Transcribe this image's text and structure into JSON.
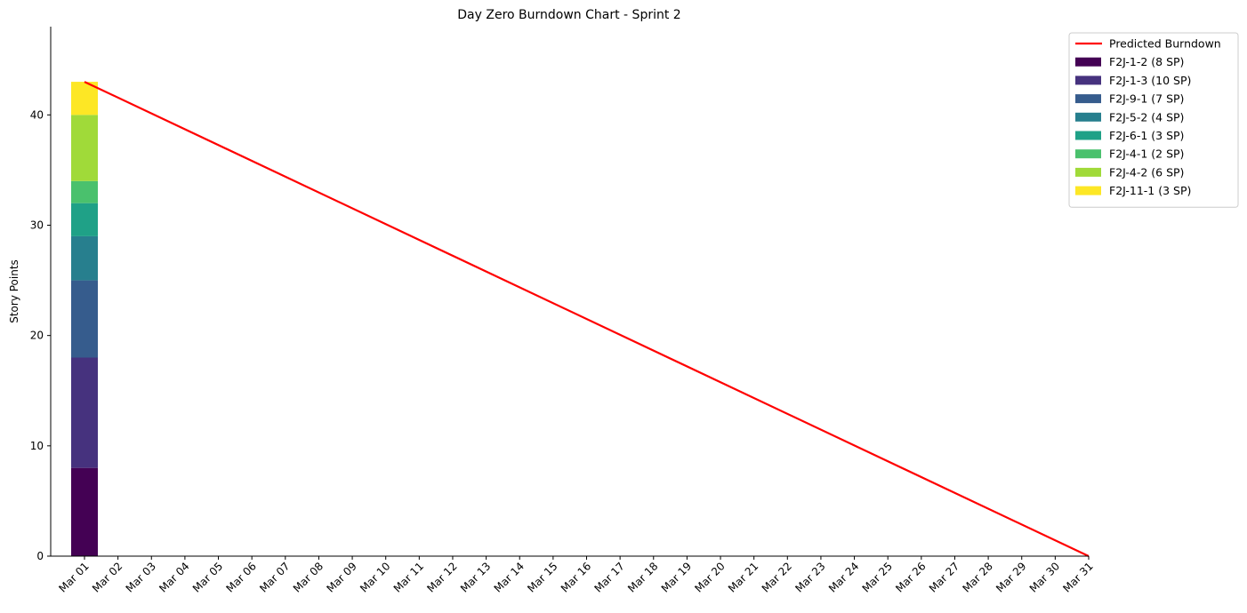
{
  "chart_data": {
    "type": "bar",
    "title": "Day Zero Burndown Chart - Sprint 2",
    "xlabel": "",
    "ylabel": "Story Points",
    "ylim": [
      0,
      48
    ],
    "y_ticks": [
      0,
      10,
      20,
      30,
      40
    ],
    "categories": [
      "Mar 01",
      "Mar 02",
      "Mar 03",
      "Mar 04",
      "Mar 05",
      "Mar 06",
      "Mar 07",
      "Mar 08",
      "Mar 09",
      "Mar 10",
      "Mar 11",
      "Mar 12",
      "Mar 13",
      "Mar 14",
      "Mar 15",
      "Mar 16",
      "Mar 17",
      "Mar 18",
      "Mar 19",
      "Mar 20",
      "Mar 21",
      "Mar 22",
      "Mar 23",
      "Mar 24",
      "Mar 25",
      "Mar 26",
      "Mar 27",
      "Mar 28",
      "Mar 29",
      "Mar 30",
      "Mar 31"
    ],
    "stacked_bar": {
      "category": "Mar 01",
      "segments": [
        {
          "name": "F2J-1-2 (8 SP)",
          "value": 8,
          "color": "#440154"
        },
        {
          "name": "F2J-1-3 (10 SP)",
          "value": 10,
          "color": "#46327e"
        },
        {
          "name": "F2J-9-1 (7 SP)",
          "value": 7,
          "color": "#365c8d"
        },
        {
          "name": "F2J-5-2 (4 SP)",
          "value": 4,
          "color": "#277f8e"
        },
        {
          "name": "F2J-6-1 (3 SP)",
          "value": 3,
          "color": "#1fa187"
        },
        {
          "name": "F2J-4-1 (2 SP)",
          "value": 2,
          "color": "#4ac16d"
        },
        {
          "name": "F2J-4-2 (6 SP)",
          "value": 6,
          "color": "#a0da39"
        },
        {
          "name": "F2J-11-1 (3 SP)",
          "value": 3,
          "color": "#fde725"
        }
      ]
    },
    "line": {
      "name": "Predicted Burndown",
      "color": "#ff0000",
      "start": {
        "x": "Mar 01",
        "y": 43
      },
      "end": {
        "x": "Mar 31",
        "y": 0
      }
    },
    "legend": "top-right",
    "grid": false
  }
}
